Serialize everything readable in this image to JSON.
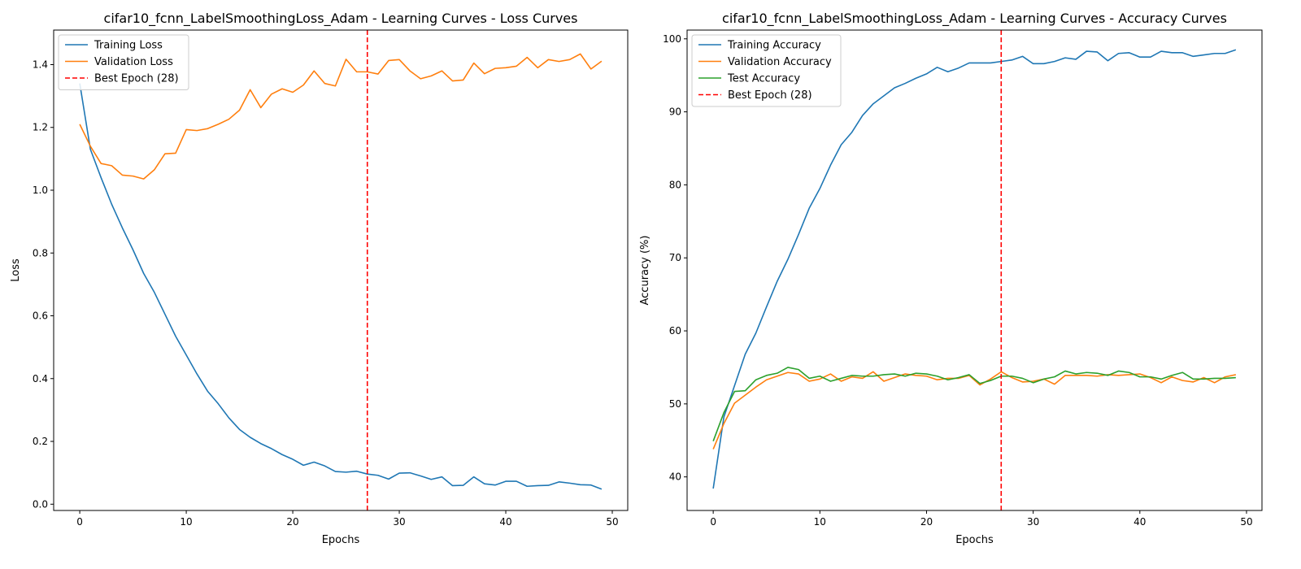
{
  "chart_data": [
    {
      "type": "line",
      "title": "cifar10_fcnn_LabelSmoothingLoss_Adam - Learning Curves - Loss Curves",
      "xlabel": "Epochs",
      "ylabel": "Loss",
      "xlim": [
        -2.45,
        51.45
      ],
      "ylim": [
        -0.02,
        1.51
      ],
      "xticks": [
        0,
        10,
        20,
        30,
        40,
        50
      ],
      "yticks": [
        0.0,
        0.2,
        0.4,
        0.6,
        0.8,
        1.0,
        1.2,
        1.4
      ],
      "ytick_decimals": 1,
      "grid": false,
      "legend": "top-left",
      "best_epoch": {
        "label": "Best Epoch (28)",
        "x": 27,
        "color": "#ff0000"
      },
      "x": [
        0,
        1,
        2,
        3,
        4,
        5,
        6,
        7,
        8,
        9,
        10,
        11,
        12,
        13,
        14,
        15,
        16,
        17,
        18,
        19,
        20,
        21,
        22,
        23,
        24,
        25,
        26,
        27,
        28,
        29,
        30,
        31,
        32,
        33,
        34,
        35,
        36,
        37,
        38,
        39,
        40,
        41,
        42,
        43,
        44,
        45,
        46,
        47,
        48,
        49
      ],
      "series": [
        {
          "name": "Training Loss",
          "color": "#1f77b4",
          "values": [
            1.34,
            1.13,
            1.04,
            0.955,
            0.88,
            0.81,
            0.735,
            0.675,
            0.605,
            0.535,
            0.475,
            0.415,
            0.36,
            0.32,
            0.275,
            0.238,
            0.213,
            0.193,
            0.177,
            0.158,
            0.143,
            0.124,
            0.134,
            0.122,
            0.104,
            0.102,
            0.105,
            0.096,
            0.092,
            0.08,
            0.099,
            0.1,
            0.09,
            0.079,
            0.087,
            0.059,
            0.06,
            0.087,
            0.065,
            0.061,
            0.073,
            0.073,
            0.057,
            0.059,
            0.06,
            0.071,
            0.067,
            0.062,
            0.061,
            0.048
          ]
        },
        {
          "name": "Validation Loss",
          "color": "#ff7f0e",
          "values": [
            1.21,
            1.14,
            1.085,
            1.078,
            1.048,
            1.045,
            1.036,
            1.065,
            1.116,
            1.118,
            1.193,
            1.19,
            1.196,
            1.21,
            1.226,
            1.255,
            1.32,
            1.263,
            1.306,
            1.323,
            1.312,
            1.335,
            1.38,
            1.34,
            1.332,
            1.417,
            1.377,
            1.377,
            1.37,
            1.413,
            1.416,
            1.38,
            1.355,
            1.364,
            1.38,
            1.348,
            1.351,
            1.405,
            1.371,
            1.388,
            1.39,
            1.395,
            1.423,
            1.39,
            1.416,
            1.41,
            1.416,
            1.434,
            1.386,
            1.411
          ]
        }
      ]
    },
    {
      "type": "line",
      "title": "cifar10_fcnn_LabelSmoothingLoss_Adam - Learning Curves - Accuracy Curves",
      "xlabel": "Epochs",
      "ylabel": "Accuracy (%)",
      "xlim": [
        -2.45,
        51.45
      ],
      "ylim": [
        35.4,
        101.2
      ],
      "xticks": [
        0,
        10,
        20,
        30,
        40,
        50
      ],
      "yticks": [
        40,
        50,
        60,
        70,
        80,
        90,
        100
      ],
      "ytick_decimals": 0,
      "grid": false,
      "legend": "top-left",
      "best_epoch": {
        "label": "Best Epoch (28)",
        "x": 27,
        "color": "#ff0000"
      },
      "x": [
        0,
        1,
        2,
        3,
        4,
        5,
        6,
        7,
        8,
        9,
        10,
        11,
        12,
        13,
        14,
        15,
        16,
        17,
        18,
        19,
        20,
        21,
        22,
        23,
        24,
        25,
        26,
        27,
        28,
        29,
        30,
        31,
        32,
        33,
        34,
        35,
        36,
        37,
        38,
        39,
        40,
        41,
        42,
        43,
        44,
        45,
        46,
        47,
        48,
        49
      ],
      "series": [
        {
          "name": "Training Accuracy",
          "color": "#1f77b4",
          "values": [
            38.4,
            48.2,
            52.5,
            56.8,
            59.7,
            63.3,
            66.8,
            69.8,
            73.2,
            76.8,
            79.5,
            82.7,
            85.5,
            87.2,
            89.5,
            91.1,
            92.2,
            93.3,
            93.9,
            94.6,
            95.2,
            96.1,
            95.5,
            96.0,
            96.7,
            96.7,
            96.7,
            96.9,
            97.1,
            97.6,
            96.6,
            96.6,
            96.9,
            97.4,
            97.2,
            98.3,
            98.2,
            97.0,
            98.0,
            98.1,
            97.5,
            97.5,
            98.3,
            98.1,
            98.1,
            97.6,
            97.8,
            98.0,
            98.0,
            98.5
          ]
        },
        {
          "name": "Validation Accuracy",
          "color": "#ff7f0e",
          "values": [
            43.8,
            47.3,
            50.1,
            51.2,
            52.3,
            53.3,
            53.8,
            54.3,
            54.1,
            53.1,
            53.4,
            54.1,
            53.1,
            53.7,
            53.5,
            54.4,
            53.1,
            53.6,
            54.1,
            53.9,
            53.8,
            53.3,
            53.5,
            53.5,
            53.9,
            52.6,
            53.4,
            54.4,
            53.6,
            53.0,
            53.1,
            53.4,
            52.7,
            53.9,
            53.9,
            53.9,
            53.8,
            54.0,
            53.9,
            54.0,
            54.1,
            53.6,
            52.9,
            53.7,
            53.2,
            53.0,
            53.6,
            52.9,
            53.7,
            54.0
          ]
        },
        {
          "name": "Test Accuracy",
          "color": "#2ca02c",
          "values": [
            44.9,
            48.8,
            51.7,
            51.8,
            53.3,
            53.9,
            54.2,
            55.0,
            54.7,
            53.5,
            53.8,
            53.1,
            53.5,
            53.9,
            53.8,
            53.8,
            54.0,
            54.1,
            53.8,
            54.2,
            54.1,
            53.8,
            53.3,
            53.6,
            54.0,
            52.8,
            53.2,
            53.8,
            53.8,
            53.5,
            52.9,
            53.4,
            53.7,
            54.5,
            54.1,
            54.3,
            54.2,
            53.9,
            54.5,
            54.3,
            53.7,
            53.7,
            53.4,
            53.9,
            54.3,
            53.4,
            53.4,
            53.5,
            53.5,
            53.6
          ]
        }
      ]
    }
  ]
}
